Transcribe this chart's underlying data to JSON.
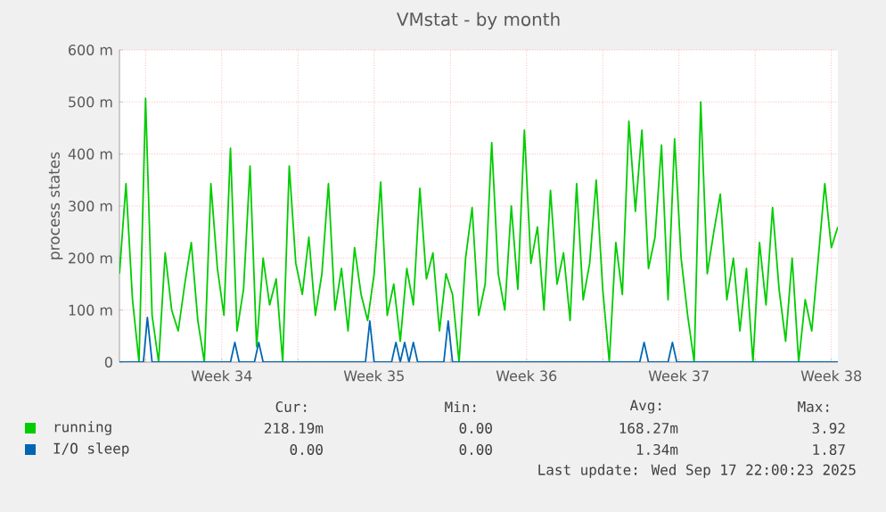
{
  "chart_data": {
    "type": "line",
    "title": "VMstat - by month",
    "ylabel": "process states",
    "xlim": [
      "2025-08-16T19:12",
      "2025-09-18T19:12"
    ],
    "ylim": [
      0,
      600
    ],
    "xticks": [
      {
        "value": "2025-08-18",
        "label": null
      },
      {
        "value": "2025-08-21T12:00",
        "label": "Week 34"
      },
      {
        "value": "2025-08-25",
        "label": null
      },
      {
        "value": "2025-08-28T12:00",
        "label": "Week 35"
      },
      {
        "value": "2025-09-01",
        "label": null
      },
      {
        "value": "2025-09-04T12:00",
        "label": "Week 36"
      },
      {
        "value": "2025-09-08",
        "label": null
      },
      {
        "value": "2025-09-11T12:00",
        "label": "Week 37"
      },
      {
        "value": "2025-09-15",
        "label": null
      },
      {
        "value": "2025-09-18T12:00",
        "label": "Week 38"
      }
    ],
    "yticks": [
      0,
      {
        "value": 100,
        "label": "100 m"
      },
      {
        "value": 200,
        "label": "200 m"
      },
      {
        "value": 300,
        "label": "300 m"
      },
      {
        "value": 400,
        "label": "400 m"
      },
      {
        "value": 500,
        "label": "500 m"
      },
      {
        "value": 600,
        "label": "600 m"
      }
    ],
    "grid": true,
    "legend": "bottom",
    "line_style": "solid",
    "series": [
      {
        "name": "running",
        "color": "#00cc00",
        "x": [
          "2025-08-16T19:12",
          "2025-08-17T02:24",
          "2025-08-17T09:36",
          "2025-08-17T16:48",
          "2025-08-18T00:00",
          "2025-08-18T07:12",
          "2025-08-18T14:24",
          "2025-08-18T21:36",
          "2025-08-19T04:48",
          "2025-08-19T12:00",
          "2025-08-19T19:12",
          "2025-08-20T02:24",
          "2025-08-20T09:36",
          "2025-08-20T16:48",
          "2025-08-21T00:00",
          "2025-08-21T07:12",
          "2025-08-21T14:24",
          "2025-08-21T21:36",
          "2025-08-22T04:48",
          "2025-08-22T12:00",
          "2025-08-22T19:12",
          "2025-08-23T02:24",
          "2025-08-23T09:36",
          "2025-08-23T16:48",
          "2025-08-24T00:00",
          "2025-08-24T07:12",
          "2025-08-24T14:24",
          "2025-08-24T21:36",
          "2025-08-25T04:48",
          "2025-08-25T12:00",
          "2025-08-25T19:12",
          "2025-08-26T02:24",
          "2025-08-26T09:36",
          "2025-08-26T16:48",
          "2025-08-27T00:00",
          "2025-08-27T07:12",
          "2025-08-27T14:24",
          "2025-08-27T21:36",
          "2025-08-28T04:48",
          "2025-08-28T12:00",
          "2025-08-28T19:12",
          "2025-08-29T02:24",
          "2025-08-29T09:36",
          "2025-08-29T16:48",
          "2025-08-30T00:00",
          "2025-08-30T07:12",
          "2025-08-30T14:24",
          "2025-08-30T21:36",
          "2025-08-31T04:48",
          "2025-08-31T12:00",
          "2025-08-31T19:12",
          "2025-09-01T02:24",
          "2025-09-01T09:36",
          "2025-09-01T16:48",
          "2025-09-02T00:00",
          "2025-09-02T07:12",
          "2025-09-02T14:24",
          "2025-09-02T21:36",
          "2025-09-03T04:48",
          "2025-09-03T12:00",
          "2025-09-03T19:12",
          "2025-09-04T02:24",
          "2025-09-04T09:36",
          "2025-09-04T16:48",
          "2025-09-05T00:00",
          "2025-09-05T07:12",
          "2025-09-05T14:24",
          "2025-09-05T21:36",
          "2025-09-06T04:48",
          "2025-09-06T12:00",
          "2025-09-06T19:12",
          "2025-09-07T02:24",
          "2025-09-07T09:36",
          "2025-09-07T16:48",
          "2025-09-08T00:00",
          "2025-09-08T07:12",
          "2025-09-08T14:24",
          "2025-09-08T21:36",
          "2025-09-09T04:48",
          "2025-09-09T12:00",
          "2025-09-09T19:12",
          "2025-09-10T02:24",
          "2025-09-10T09:36",
          "2025-09-10T16:48",
          "2025-09-11T00:00",
          "2025-09-11T07:12",
          "2025-09-11T14:24",
          "2025-09-11T21:36",
          "2025-09-12T04:48",
          "2025-09-12T12:00",
          "2025-09-12T19:12",
          "2025-09-13T02:24",
          "2025-09-13T09:36",
          "2025-09-13T16:48",
          "2025-09-14T00:00",
          "2025-09-14T07:12",
          "2025-09-14T14:24",
          "2025-09-14T21:36",
          "2025-09-15T04:48",
          "2025-09-15T12:00",
          "2025-09-15T19:12",
          "2025-09-16T02:24",
          "2025-09-16T09:36",
          "2025-09-16T16:48",
          "2025-09-17T00:00",
          "2025-09-17T07:12",
          "2025-09-17T14:24",
          "2025-09-17T21:36",
          "2025-09-18T04:48",
          "2025-09-18T12:00",
          "2025-09-18T19:12"
        ],
        "values": [
          170,
          343,
          120,
          0,
          507,
          90,
          0,
          210,
          100,
          60,
          150,
          230,
          80,
          0,
          343,
          180,
          90,
          411,
          60,
          140,
          377,
          30,
          200,
          110,
          160,
          0,
          377,
          190,
          130,
          240,
          90,
          170,
          343,
          100,
          180,
          60,
          220,
          130,
          80,
          170,
          346,
          90,
          150,
          40,
          180,
          110,
          334,
          160,
          210,
          60,
          170,
          130,
          0,
          200,
          297,
          90,
          150,
          422,
          170,
          100,
          300,
          140,
          446,
          190,
          260,
          100,
          330,
          150,
          210,
          80,
          343,
          120,
          190,
          350,
          140,
          0,
          230,
          130,
          463,
          290,
          446,
          180,
          240,
          417,
          120,
          429,
          200,
          90,
          0,
          500,
          170,
          250,
          323,
          120,
          200,
          60,
          180,
          0,
          230,
          110,
          297,
          140,
          40,
          200,
          0,
          120,
          60,
          200,
          343,
          220,
          260
        ]
      },
      {
        "name": "I/O sleep",
        "color": "#0066b3",
        "x": [
          "2025-08-16T19:12",
          "2025-08-17T21:36",
          "2025-08-18T02:00",
          "2025-08-18T07:12",
          "2025-08-21T21:36",
          "2025-08-22T02:24",
          "2025-08-22T07:12",
          "2025-08-23T00:00",
          "2025-08-23T04:48",
          "2025-08-23T09:36",
          "2025-08-28T02:24",
          "2025-08-28T07:12",
          "2025-08-28T12:00",
          "2025-08-29T07:12",
          "2025-08-29T12:00",
          "2025-08-29T16:48",
          "2025-08-29T21:36",
          "2025-08-30T02:24",
          "2025-08-30T07:12",
          "2025-08-30T12:00",
          "2025-08-31T16:48",
          "2025-08-31T21:36",
          "2025-09-01T02:24",
          "2025-09-09T16:48",
          "2025-09-09T21:36",
          "2025-09-10T02:24",
          "2025-09-11T00:00",
          "2025-09-11T04:48",
          "2025-09-11T09:36",
          "2025-09-18T19:12"
        ],
        "values": [
          0,
          0,
          86,
          0,
          0,
          38,
          0,
          0,
          38,
          0,
          0,
          79,
          0,
          0,
          38,
          0,
          38,
          0,
          38,
          0,
          0,
          79,
          0,
          0,
          38,
          0,
          0,
          38,
          0,
          0
        ]
      }
    ],
    "annotations": [
      "Cur:",
      "Min:",
      "Avg:",
      "Max:",
      "218.19m",
      "0.00",
      "168.27m",
      "3.92",
      "0.00",
      "0.00",
      "1.34m",
      "1.87",
      "Last update: Wed Sep 17 22:00:23 2025"
    ]
  }
}
